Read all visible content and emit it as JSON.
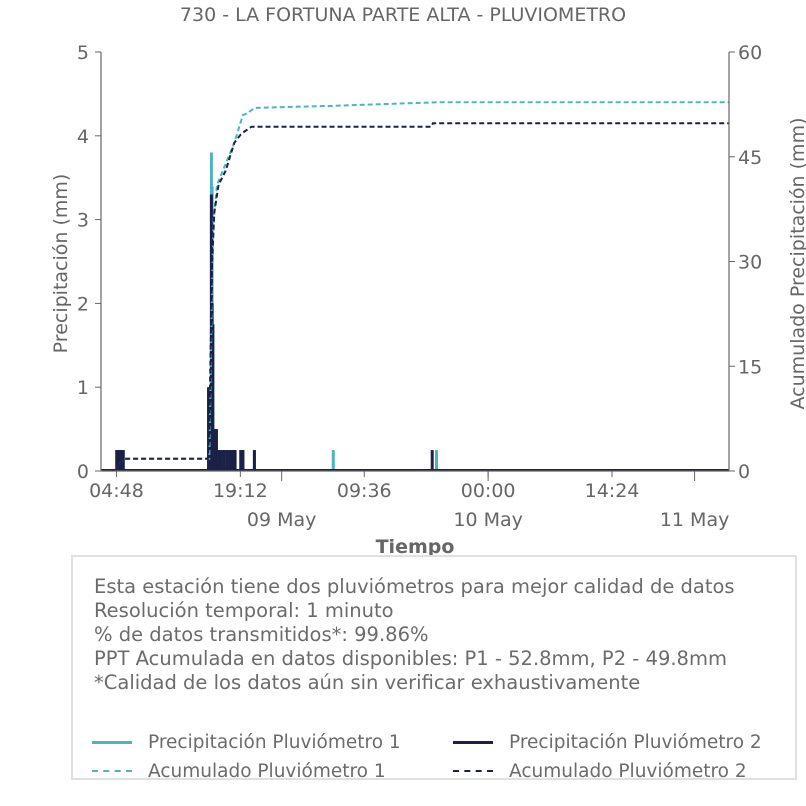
{
  "chart_data": {
    "type": "line",
    "title": "730 - LA FORTUNA PARTE ALTA - PLUVIOMETRO",
    "xlabel": "Tiempo",
    "ylabel": "Precipitación (mm)",
    "ylabel_right": "Acumulado Precipitación (mm)",
    "ylim": [
      0,
      5
    ],
    "ylim_right": [
      0,
      60
    ],
    "yticks": [
      0,
      1,
      2,
      3,
      4,
      5
    ],
    "yticks_right": [
      0,
      15,
      30,
      45,
      60
    ],
    "xlim": [
      "2023-05-08 03:00",
      "2023-05-11 04:00"
    ],
    "xticks": [
      {
        "t": "2023-05-08 04:48",
        "label": "04:48"
      },
      {
        "t": "2023-05-08 19:12",
        "label": "19:12"
      },
      {
        "t": "2023-05-09 09:36",
        "label": "09:36"
      },
      {
        "t": "2023-05-10 00:00",
        "label": "00:00"
      },
      {
        "t": "2023-05-10 14:24",
        "label": "14:24"
      }
    ],
    "xticks_major": [
      {
        "t": "2023-05-09 00:00",
        "label": "09 May"
      },
      {
        "t": "2023-05-10 00:00",
        "label": "10 May"
      },
      {
        "t": "2023-05-11 00:00",
        "label": "11 May"
      }
    ],
    "grid": false,
    "series": [
      {
        "name": "Precipitación Pluviómetro 1",
        "axis": "left",
        "style": "bars",
        "color": "#4fb3c0",
        "points": [
          [
            "2023-05-08 04:50",
            0.25
          ],
          [
            "2023-05-08 05:00",
            0.25
          ],
          [
            "2023-05-08 05:10",
            0.25
          ],
          [
            "2023-05-08 05:20",
            0.25
          ],
          [
            "2023-05-08 05:35",
            0.25
          ],
          [
            "2023-05-08 15:40",
            1.0
          ],
          [
            "2023-05-08 15:50",
            3.8
          ],
          [
            "2023-05-08 15:55",
            3.4
          ],
          [
            "2023-05-08 16:00",
            1.75
          ],
          [
            "2023-05-08 16:10",
            0.5
          ],
          [
            "2023-05-08 16:25",
            0.5
          ],
          [
            "2023-05-08 16:40",
            0.25
          ],
          [
            "2023-05-08 17:00",
            0.25
          ],
          [
            "2023-05-08 17:20",
            0.25
          ],
          [
            "2023-05-08 17:40",
            0.25
          ],
          [
            "2023-05-08 18:00",
            0.25
          ],
          [
            "2023-05-08 18:20",
            0.25
          ],
          [
            "2023-05-08 18:35",
            0.25
          ],
          [
            "2023-05-08 19:15",
            0.25
          ],
          [
            "2023-05-08 19:30",
            0.25
          ],
          [
            "2023-05-08 20:50",
            0.25
          ],
          [
            "2023-05-09 06:00",
            0.25
          ],
          [
            "2023-05-09 18:00",
            0.25
          ]
        ]
      },
      {
        "name": "Precipitación Pluviómetro 2",
        "axis": "left",
        "style": "bars",
        "color": "#1c2046",
        "points": [
          [
            "2023-05-08 04:50",
            0.25
          ],
          [
            "2023-05-08 05:00",
            0.25
          ],
          [
            "2023-05-08 05:10",
            0.25
          ],
          [
            "2023-05-08 05:20",
            0.25
          ],
          [
            "2023-05-08 05:35",
            0.25
          ],
          [
            "2023-05-08 15:30",
            1.0
          ],
          [
            "2023-05-08 15:40",
            1.0
          ],
          [
            "2023-05-08 15:50",
            3.3
          ],
          [
            "2023-05-08 15:55",
            2.0
          ],
          [
            "2023-05-08 16:00",
            1.75
          ],
          [
            "2023-05-08 16:10",
            0.5
          ],
          [
            "2023-05-08 16:25",
            0.5
          ],
          [
            "2023-05-08 16:40",
            0.25
          ],
          [
            "2023-05-08 17:00",
            0.25
          ],
          [
            "2023-05-08 17:20",
            0.25
          ],
          [
            "2023-05-08 17:40",
            0.25
          ],
          [
            "2023-05-08 18:00",
            0.25
          ],
          [
            "2023-05-08 18:20",
            0.25
          ],
          [
            "2023-05-08 18:35",
            0.25
          ],
          [
            "2023-05-08 19:15",
            0.25
          ],
          [
            "2023-05-08 19:30",
            0.25
          ],
          [
            "2023-05-08 20:50",
            0.25
          ],
          [
            "2023-05-09 17:30",
            0.25
          ]
        ]
      },
      {
        "name": "Acumulado Pluviómetro 1",
        "axis": "right",
        "style": "dashed",
        "color": "#4fb3c0",
        "points": [
          [
            "2023-05-08 04:45",
            0
          ],
          [
            "2023-05-08 04:50",
            0.5
          ],
          [
            "2023-05-08 05:40",
            1.75
          ],
          [
            "2023-05-08 15:35",
            1.75
          ],
          [
            "2023-05-08 15:45",
            14
          ],
          [
            "2023-05-08 15:55",
            27
          ],
          [
            "2023-05-08 16:05",
            36
          ],
          [
            "2023-05-08 16:30",
            41
          ],
          [
            "2023-05-08 17:30",
            44
          ],
          [
            "2023-05-08 18:30",
            47
          ],
          [
            "2023-05-08 19:15",
            50
          ],
          [
            "2023-05-08 19:30",
            51
          ],
          [
            "2023-05-08 20:00",
            51.2
          ],
          [
            "2023-05-08 20:50",
            52
          ],
          [
            "2023-05-09 06:00",
            52.3
          ],
          [
            "2023-05-09 18:00",
            52.8
          ],
          [
            "2023-05-11 04:00",
            52.8
          ]
        ]
      },
      {
        "name": "Acumulado Pluviómetro 2",
        "axis": "right",
        "style": "dashed",
        "color": "#1c2046",
        "points": [
          [
            "2023-05-08 04:45",
            0
          ],
          [
            "2023-05-08 04:50",
            0.5
          ],
          [
            "2023-05-08 05:40",
            1.75
          ],
          [
            "2023-05-08 15:25",
            1.75
          ],
          [
            "2023-05-08 15:35",
            6
          ],
          [
            "2023-05-08 15:45",
            18
          ],
          [
            "2023-05-08 15:55",
            30
          ],
          [
            "2023-05-08 16:10",
            37
          ],
          [
            "2023-05-08 16:40",
            41
          ],
          [
            "2023-05-08 17:30",
            43
          ],
          [
            "2023-05-08 18:30",
            47
          ],
          [
            "2023-05-08 19:15",
            48.2
          ],
          [
            "2023-05-08 19:40",
            48.6
          ],
          [
            "2023-05-08 20:30",
            49.3
          ],
          [
            "2023-05-09 17:25",
            49.3
          ],
          [
            "2023-05-09 17:35",
            49.8
          ],
          [
            "2023-05-11 04:00",
            49.8
          ]
        ]
      }
    ]
  },
  "info": {
    "lines": [
      "Esta estación tiene dos pluviómetros para mejor calidad de datos",
      "Resolución temporal: 1 minuto",
      "% de datos transmitidos*: 99.86%",
      "PPT Acumulada en datos disponibles: P1 - 52.8mm, P2 - 49.8mm",
      "*Calidad de los datos aún sin verificar exhaustivamente"
    ]
  },
  "legend": {
    "items": [
      {
        "label": "Precipitación Pluviómetro 1",
        "color": "#4fb3c0",
        "style": "solid"
      },
      {
        "label": "Precipitación Pluviómetro 2",
        "color": "#1c2046",
        "style": "solid"
      },
      {
        "label": "Acumulado Pluviómetro 1",
        "color": "#4fb3c0",
        "style": "dashed"
      },
      {
        "label": "Acumulado Pluviómetro 2",
        "color": "#1c2046",
        "style": "dashed"
      }
    ]
  }
}
